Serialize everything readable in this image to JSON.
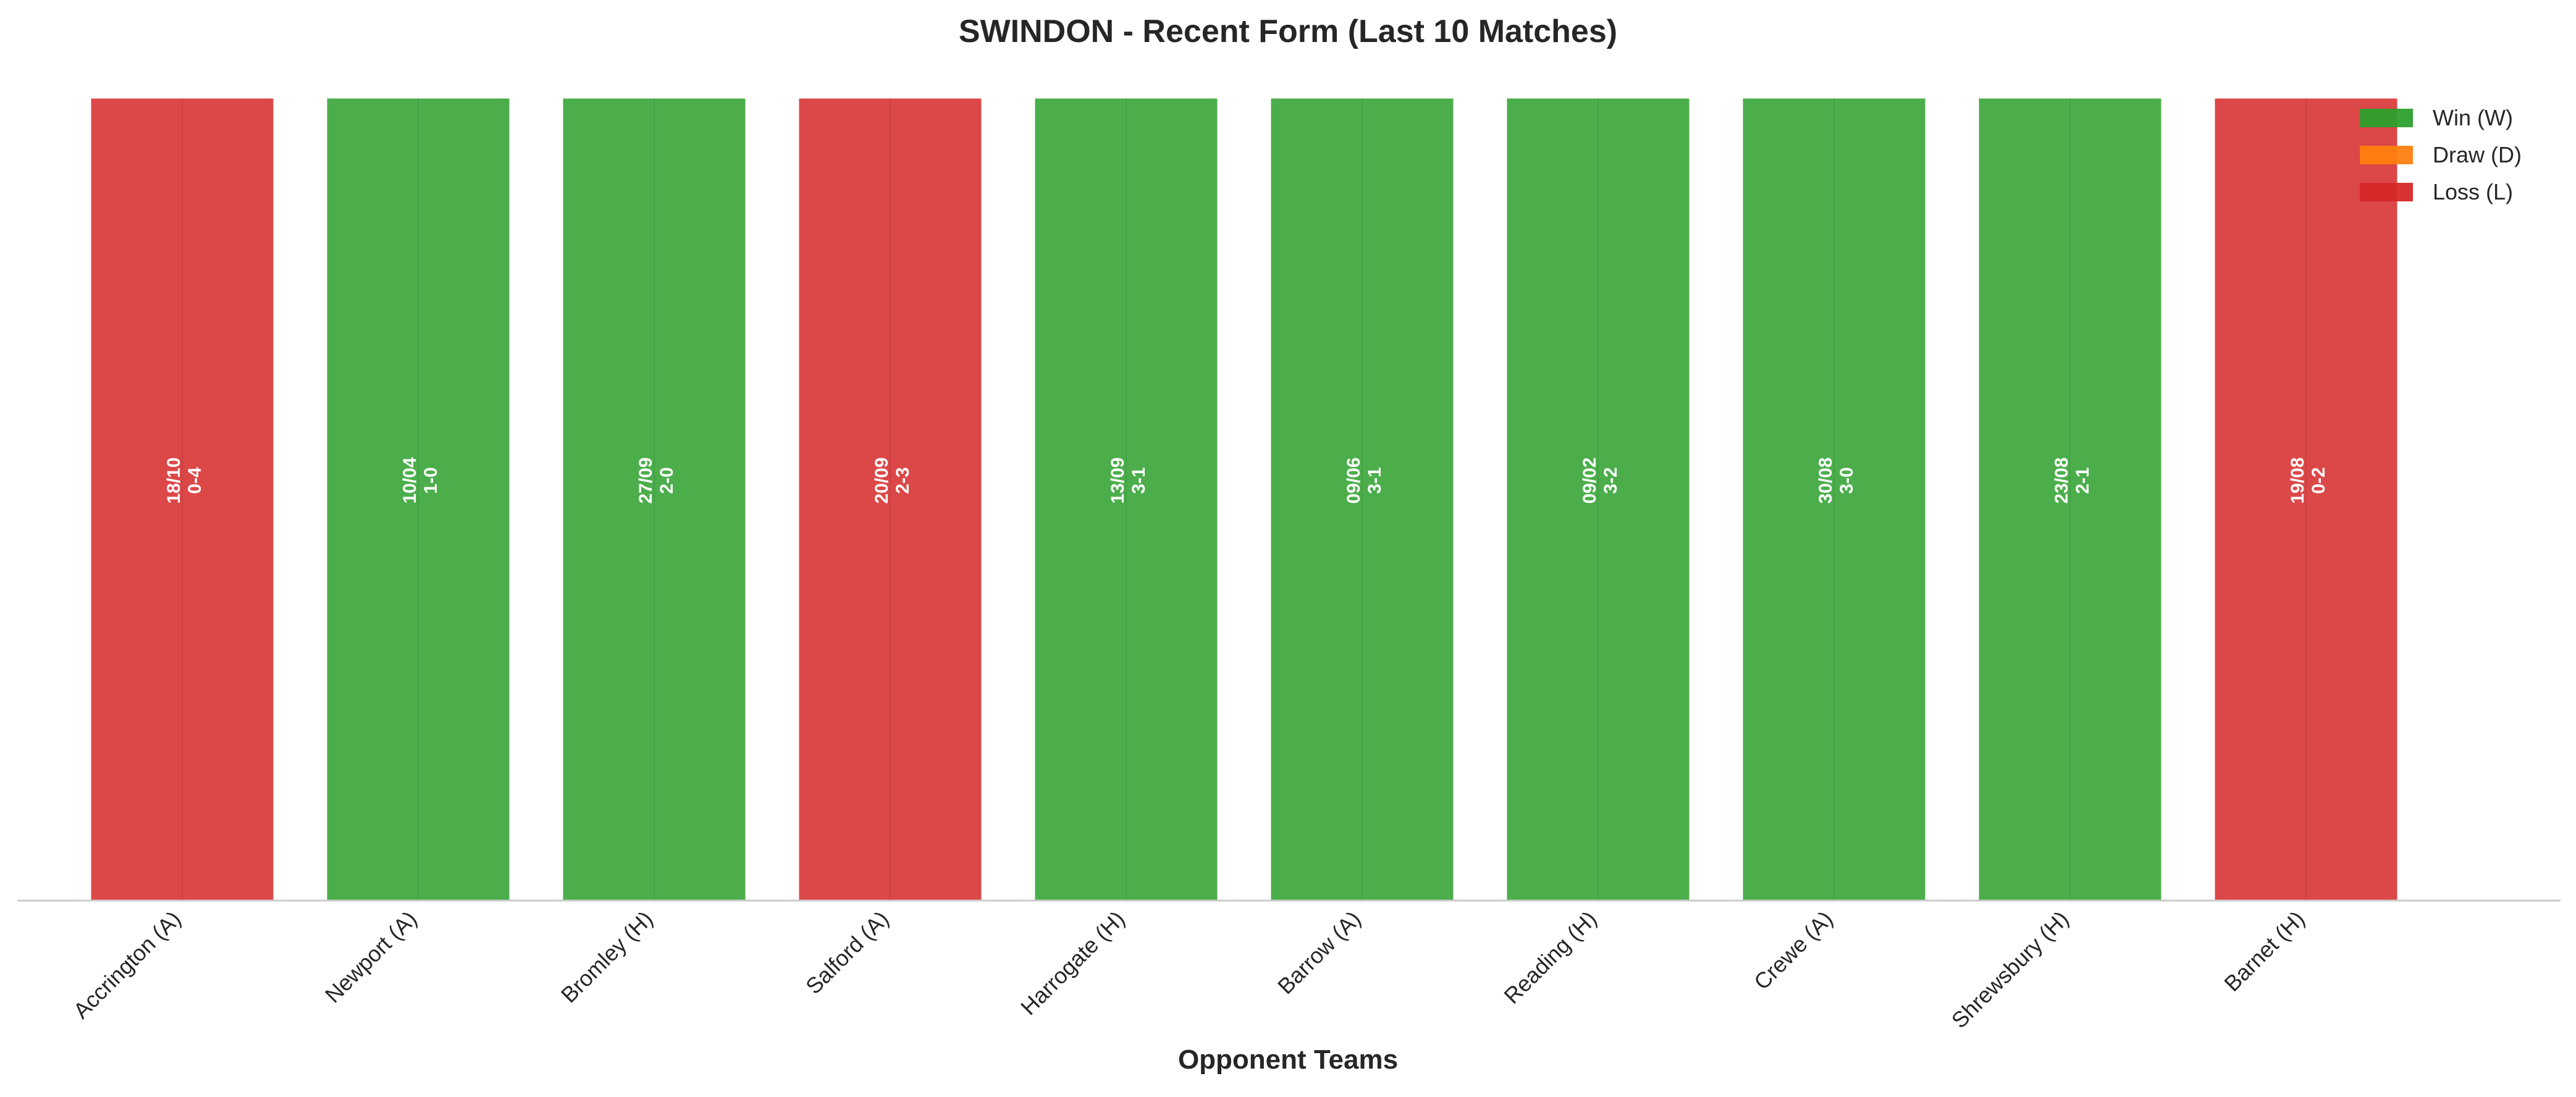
{
  "chart_data": {
    "type": "bar",
    "title": "SWINDON - Recent Form (Last 10 Matches)",
    "xlabel": "Opponent Teams",
    "ylabel": "",
    "grid": false,
    "legend_position": "top-right",
    "categories": [
      "Accrington (A)",
      "Newport (A)",
      "Bromley (H)",
      "Salford (A)",
      "Harrogate (H)",
      "Barrow (A)",
      "Reading (H)",
      "Crewe (A)",
      "Shrewsbury (H)",
      "Barnet (H)"
    ],
    "values": [
      1,
      1,
      1,
      1,
      1,
      1,
      1,
      1,
      1,
      1
    ],
    "ylim": [
      0,
      1.0
    ],
    "results": [
      "L",
      "W",
      "W",
      "L",
      "W",
      "W",
      "W",
      "W",
      "W",
      "L"
    ],
    "bar_labels": [
      [
        "18/10",
        "0-4"
      ],
      [
        "10/04",
        "1-0"
      ],
      [
        "27/09",
        "2-0"
      ],
      [
        "20/09",
        "2-3"
      ],
      [
        "13/09",
        "3-1"
      ],
      [
        "09/06",
        "3-1"
      ],
      [
        "09/02",
        "3-2"
      ],
      [
        "30/08",
        "3-0"
      ],
      [
        "23/08",
        "2-1"
      ],
      [
        "19/08",
        "0-2"
      ]
    ],
    "legend": [
      {
        "key": "W",
        "label": "Win (W)",
        "color": "#2ca02c"
      },
      {
        "key": "D",
        "label": "Draw (D)",
        "color": "#ff7f0e"
      },
      {
        "key": "L",
        "label": "Loss (L)",
        "color": "#d62728"
      }
    ]
  },
  "colors": {
    "W": "#2ca02c",
    "D": "#ff7f0e",
    "L": "#d62728",
    "text": "#262626",
    "axis": "#cccccc"
  }
}
